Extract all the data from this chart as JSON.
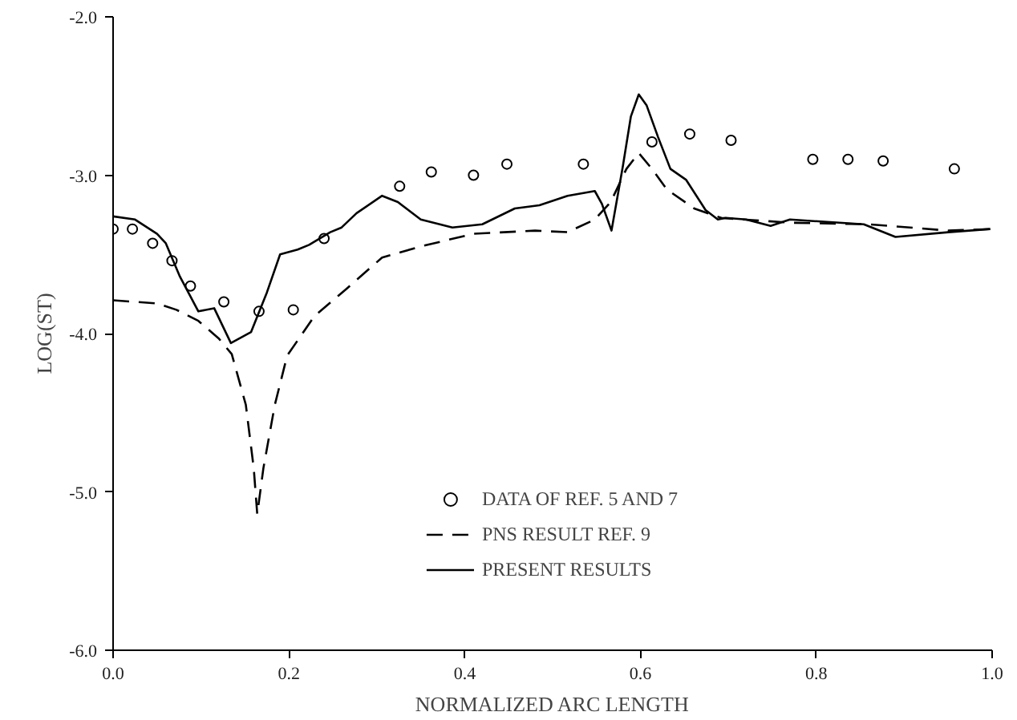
{
  "chart_data": {
    "type": "line",
    "xlabel": "NORMALIZED ARC LENGTH",
    "ylabel": "LOG(ST)",
    "xlim": [
      0,
      1
    ],
    "ylim": [
      -6,
      -2
    ],
    "xticks": [
      {
        "value": 0,
        "label": "0.0"
      },
      {
        "value": 0.2,
        "label": "0.2"
      },
      {
        "value": 0.4,
        "label": "0.4"
      },
      {
        "value": 0.6,
        "label": "0.6"
      },
      {
        "value": 0.8,
        "label": "0.8"
      },
      {
        "value": 1,
        "label": "1.0"
      }
    ],
    "yticks": [
      {
        "value": -2,
        "label": "-2.0"
      },
      {
        "value": -3,
        "label": "-3.0"
      },
      {
        "value": -4,
        "label": "-4.0"
      },
      {
        "value": -5,
        "label": "-5.0"
      },
      {
        "value": -6,
        "label": "-6.0"
      }
    ],
    "grid": false,
    "legend": "bottom",
    "series": [
      {
        "name": "DATA OF REF. 5 AND 7",
        "type": "scatter",
        "marker": "circle",
        "color": "#000000",
        "x": [
          0,
          0.022,
          0.045,
          0.067,
          0.088,
          0.126,
          0.166,
          0.205,
          0.24,
          0.326,
          0.362,
          0.41,
          0.448,
          0.535,
          0.613,
          0.656,
          0.703,
          0.796,
          0.836,
          0.876,
          0.957
        ],
        "values": [
          -3.34,
          -3.34,
          -3.43,
          -3.54,
          -3.7,
          -3.8,
          -3.86,
          -3.85,
          -3.4,
          -3.07,
          -2.98,
          -3.0,
          -2.93,
          -2.93,
          -2.79,
          -2.74,
          -2.78,
          -2.9,
          -2.9,
          -2.91,
          -2.96
        ]
      },
      {
        "name": "PNS RESULT REF. 9",
        "line_style": "dashed",
        "color": "#000000",
        "x": [
          0,
          0.05,
          0.072,
          0.097,
          0.12,
          0.135,
          0.151,
          0.16,
          0.164,
          0.171,
          0.184,
          0.198,
          0.229,
          0.265,
          0.306,
          0.35,
          0.41,
          0.48,
          0.517,
          0.548,
          0.566,
          0.584,
          0.598,
          0.613,
          0.63,
          0.661,
          0.692,
          0.77,
          0.86,
          0.95,
          1.0
        ],
        "values": [
          -3.79,
          -3.81,
          -3.85,
          -3.92,
          -4.03,
          -4.13,
          -4.45,
          -4.85,
          -5.14,
          -4.85,
          -4.45,
          -4.14,
          -3.89,
          -3.72,
          -3.52,
          -3.45,
          -3.37,
          -3.35,
          -3.36,
          -3.28,
          -3.17,
          -2.96,
          -2.86,
          -2.96,
          -3.09,
          -3.21,
          -3.27,
          -3.3,
          -3.31,
          -3.35,
          -3.34
        ]
      },
      {
        "name": "PRESENT RESULTS",
        "line_style": "solid",
        "color": "#000000",
        "x": [
          0,
          0.025,
          0.05,
          0.06,
          0.076,
          0.097,
          0.115,
          0.134,
          0.157,
          0.175,
          0.19,
          0.21,
          0.223,
          0.247,
          0.26,
          0.277,
          0.306,
          0.324,
          0.35,
          0.386,
          0.42,
          0.457,
          0.485,
          0.517,
          0.548,
          0.556,
          0.567,
          0.58,
          0.589,
          0.598,
          0.607,
          0.62,
          0.634,
          0.652,
          0.674,
          0.688,
          0.697,
          0.72,
          0.748,
          0.77,
          0.854,
          0.89,
          0.95,
          0.998
        ],
        "values": [
          -3.26,
          -3.28,
          -3.37,
          -3.43,
          -3.64,
          -3.86,
          -3.84,
          -4.06,
          -3.99,
          -3.74,
          -3.5,
          -3.47,
          -3.44,
          -3.36,
          -3.33,
          -3.24,
          -3.13,
          -3.17,
          -3.28,
          -3.33,
          -3.31,
          -3.21,
          -3.19,
          -3.13,
          -3.1,
          -3.18,
          -3.35,
          -2.94,
          -2.63,
          -2.49,
          -2.56,
          -2.76,
          -2.96,
          -3.03,
          -3.22,
          -3.28,
          -3.27,
          -3.28,
          -3.32,
          -3.28,
          -3.31,
          -3.39,
          -3.36,
          -3.34
        ]
      }
    ]
  }
}
